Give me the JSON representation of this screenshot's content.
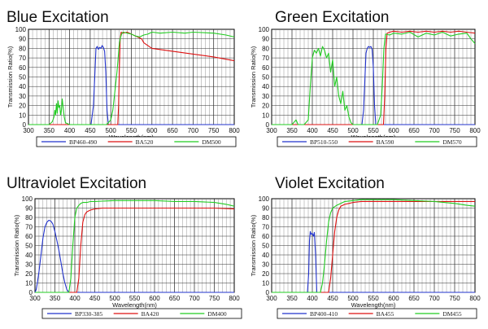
{
  "chart_data": [
    {
      "type": "line",
      "title": "Blue Excitation",
      "xlabel": "Wavelength(nm)",
      "ylabel": "Transmission Ratio(%)",
      "xlim": [
        300,
        800
      ],
      "ylim": [
        0,
        100
      ],
      "xticks": [
        300,
        350,
        400,
        450,
        500,
        550,
        600,
        650,
        700,
        750,
        800
      ],
      "yticks": [
        0,
        10,
        20,
        30,
        40,
        50,
        60,
        70,
        80,
        90,
        100
      ],
      "grid": true,
      "legend_position": "bottom",
      "series": [
        {
          "name": "BP460-490",
          "color": "#2233cc",
          "x": [
            300,
            452,
            458,
            462,
            464,
            467,
            470,
            473,
            476,
            479,
            482,
            485,
            488,
            491,
            494,
            800
          ],
          "y": [
            0,
            0,
            20,
            60,
            80,
            82,
            79,
            81,
            80,
            83,
            81,
            77,
            55,
            15,
            0,
            0
          ]
        },
        {
          "name": "BA520",
          "color": "#dd1111",
          "x": [
            300,
            517,
            519,
            521,
            523,
            525,
            530,
            540,
            550,
            560,
            570,
            575,
            580,
            590,
            600,
            650,
            700,
            750,
            800
          ],
          "y": [
            0,
            0,
            20,
            60,
            90,
            97,
            96,
            97,
            95,
            93,
            91,
            90,
            86,
            83,
            80,
            77,
            74,
            71,
            67
          ]
        },
        {
          "name": "DM500",
          "color": "#22cc22",
          "x": [
            300,
            350,
            358,
            362,
            364,
            366,
            368,
            370,
            372,
            374,
            376,
            378,
            380,
            382,
            384,
            387,
            390,
            400,
            470,
            490,
            500,
            505,
            510,
            515,
            518,
            520,
            523,
            526,
            530,
            540,
            550,
            560,
            570,
            580,
            590,
            600,
            620,
            650,
            680,
            700,
            750,
            780,
            800
          ],
          "y": [
            0,
            0,
            3,
            8,
            15,
            10,
            22,
            12,
            25,
            18,
            20,
            10,
            15,
            27,
            19,
            8,
            2,
            0,
            0,
            0,
            5,
            15,
            35,
            55,
            70,
            82,
            90,
            95,
            97,
            96,
            95,
            93,
            92,
            94,
            95,
            97,
            96,
            97,
            96,
            97,
            96,
            94,
            92
          ]
        }
      ]
    },
    {
      "type": "line",
      "title": "Green Excitation",
      "xlabel": "Wavelength(nm)",
      "ylabel": "Transmission Ratio(%)",
      "xlim": [
        300,
        800
      ],
      "ylim": [
        0,
        100
      ],
      "xticks": [
        300,
        350,
        400,
        450,
        500,
        550,
        600,
        650,
        700,
        750,
        800
      ],
      "yticks": [
        0,
        10,
        20,
        30,
        40,
        50,
        60,
        70,
        80,
        90,
        100
      ],
      "grid": true,
      "legend_position": "bottom",
      "series": [
        {
          "name": "BP510-550",
          "color": "#2233cc",
          "x": [
            300,
            522,
            526,
            529,
            532,
            535,
            538,
            541,
            544,
            547,
            550,
            553,
            556,
            800
          ],
          "y": [
            0,
            0,
            15,
            45,
            75,
            80,
            82,
            81,
            82,
            79,
            60,
            20,
            0,
            0
          ]
        },
        {
          "name": "BA590",
          "color": "#dd1111",
          "x": [
            300,
            575,
            578,
            581,
            584,
            590,
            600,
            620,
            640,
            660,
            680,
            700,
            720,
            740,
            760,
            780,
            800
          ],
          "y": [
            0,
            0,
            30,
            80,
            96,
            97,
            98,
            97,
            98,
            97,
            98,
            97,
            98,
            97,
            98,
            97,
            96
          ]
        },
        {
          "name": "DM570",
          "color": "#22cc22",
          "x": [
            300,
            350,
            360,
            365,
            370,
            380,
            390,
            395,
            400,
            405,
            410,
            415,
            420,
            425,
            430,
            435,
            440,
            445,
            450,
            455,
            460,
            465,
            470,
            475,
            480,
            485,
            490,
            495,
            500,
            560,
            568,
            572,
            576,
            580,
            590,
            600,
            620,
            640,
            660,
            680,
            700,
            720,
            740,
            760,
            780,
            790,
            800
          ],
          "y": [
            0,
            0,
            5,
            0,
            0,
            0,
            5,
            40,
            70,
            78,
            75,
            80,
            72,
            82,
            78,
            70,
            75,
            55,
            68,
            40,
            50,
            30,
            22,
            35,
            15,
            20,
            8,
            2,
            0,
            0,
            10,
            40,
            80,
            95,
            94,
            96,
            95,
            97,
            92,
            96,
            94,
            97,
            93,
            95,
            96,
            90,
            85
          ]
        }
      ]
    },
    {
      "type": "line",
      "title": "Ultraviolet Excitation",
      "xlabel": "Wavelength(nm)",
      "ylabel": "Transmission Ratio(%)",
      "xlim": [
        300,
        800
      ],
      "ylim": [
        0,
        100
      ],
      "xticks": [
        300,
        350,
        400,
        450,
        500,
        550,
        600,
        650,
        700,
        750,
        800
      ],
      "yticks": [
        0,
        10,
        20,
        30,
        40,
        50,
        60,
        70,
        80,
        90,
        100
      ],
      "grid": true,
      "legend_position": "bottom",
      "series": [
        {
          "name": "BP330-385",
          "color": "#2233cc",
          "x": [
            300,
            303,
            306,
            310,
            315,
            320,
            325,
            330,
            335,
            340,
            345,
            350,
            355,
            360,
            365,
            370,
            375,
            380,
            385,
            800
          ],
          "y": [
            0,
            3,
            10,
            22,
            40,
            58,
            70,
            75,
            77,
            76,
            73,
            65,
            55,
            45,
            33,
            20,
            10,
            3,
            0,
            0
          ]
        },
        {
          "name": "BA420",
          "color": "#dd1111",
          "x": [
            300,
            405,
            410,
            415,
            420,
            425,
            430,
            440,
            450,
            470,
            500,
            550,
            600,
            650,
            700,
            750,
            800
          ],
          "y": [
            0,
            0,
            15,
            50,
            75,
            83,
            86,
            88,
            89,
            90,
            90,
            90,
            90,
            90,
            90,
            90,
            89
          ]
        },
        {
          "name": "DM400",
          "color": "#22cc22",
          "x": [
            300,
            385,
            390,
            395,
            400,
            405,
            410,
            415,
            420,
            425,
            430,
            440,
            450,
            500,
            550,
            600,
            650,
            700,
            750,
            780,
            800
          ],
          "y": [
            0,
            0,
            15,
            50,
            80,
            90,
            93,
            95,
            96,
            96,
            96,
            97,
            97,
            98,
            98,
            98,
            97,
            97,
            96,
            94,
            92
          ]
        }
      ]
    },
    {
      "type": "line",
      "title": "Violet Excitation",
      "xlabel": "Wavelength(nm)",
      "ylabel": "Transmission Ratio(%)",
      "xlim": [
        300,
        800
      ],
      "ylim": [
        0,
        100
      ],
      "xticks": [
        300,
        350,
        400,
        450,
        500,
        550,
        600,
        650,
        700,
        750,
        800
      ],
      "yticks": [
        0,
        10,
        20,
        30,
        40,
        50,
        60,
        70,
        80,
        90,
        100
      ],
      "grid": true,
      "legend_position": "bottom",
      "series": [
        {
          "name": "BP400-410",
          "color": "#2233cc",
          "x": [
            300,
            388,
            391,
            393,
            395,
            397,
            400,
            403,
            405,
            408,
            411,
            800
          ],
          "y": [
            0,
            0,
            20,
            55,
            65,
            62,
            63,
            60,
            64,
            40,
            0,
            0
          ]
        },
        {
          "name": "BA455",
          "color": "#dd1111",
          "x": [
            300,
            440,
            445,
            450,
            455,
            460,
            465,
            470,
            480,
            490,
            500,
            520,
            550,
            600,
            650,
            700,
            750,
            800
          ],
          "y": [
            0,
            0,
            15,
            40,
            65,
            80,
            88,
            92,
            94,
            95,
            96,
            97,
            97,
            97,
            97,
            97,
            97,
            97
          ]
        },
        {
          "name": "DM455",
          "color": "#22cc22",
          "x": [
            300,
            420,
            425,
            430,
            435,
            440,
            445,
            450,
            460,
            470,
            480,
            500,
            520,
            550,
            600,
            650,
            700,
            750,
            780,
            800
          ],
          "y": [
            0,
            0,
            10,
            30,
            55,
            75,
            85,
            90,
            93,
            95,
            97,
            98,
            99,
            99,
            99,
            98,
            97,
            95,
            93,
            92
          ]
        }
      ]
    }
  ]
}
